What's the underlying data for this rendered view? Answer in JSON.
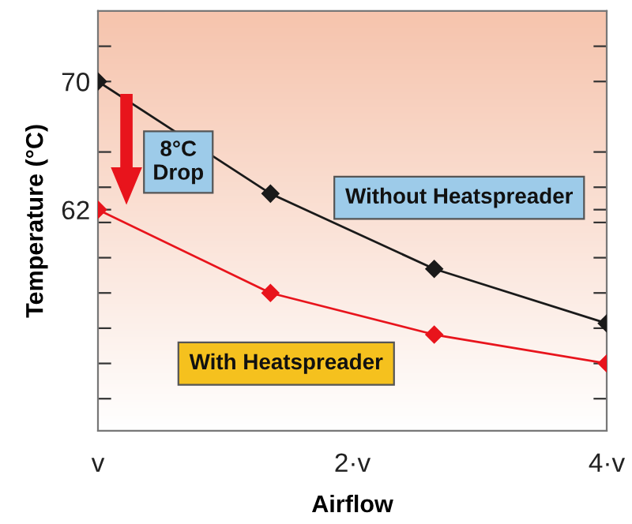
{
  "chart_data": {
    "type": "line",
    "xlabel": "Airflow",
    "ylabel": "Temperature (°C)",
    "x": [
      1,
      1.6,
      2.5,
      4
    ],
    "log": "x",
    "xlim": [
      1,
      4
    ],
    "xticks": [
      {
        "value": 1,
        "label": "v"
      },
      {
        "value": 2,
        "label": "2·v"
      },
      {
        "value": 4,
        "label": "4·v"
      }
    ],
    "ylim": [
      48.2,
      74.4
    ],
    "yticks": [
      {
        "value": 72.2,
        "label": null
      },
      70,
      {
        "value": 65.6,
        "label": null
      },
      {
        "value": 63.4,
        "label": null
      },
      62,
      {
        "value": 61.2,
        "label": null
      },
      {
        "value": 59.0,
        "label": null
      },
      {
        "value": 56.8,
        "label": null
      },
      {
        "value": 54.6,
        "label": null
      },
      {
        "value": 52.4,
        "label": null
      },
      {
        "value": 50.2,
        "label": null
      }
    ],
    "series": [
      {
        "name": "Without Heatspreader",
        "color": "#1a1a1a",
        "values": [
          70,
          63.0,
          58.3,
          54.9
        ]
      },
      {
        "name": "With Heatspreader",
        "color": "#e8141c",
        "values": [
          62,
          56.8,
          54.2,
          52.4
        ]
      }
    ],
    "marker": "diamond",
    "line_style": "solid",
    "grid": false,
    "legend": false,
    "annotations": [
      "8°C\nDrop"
    ]
  }
}
